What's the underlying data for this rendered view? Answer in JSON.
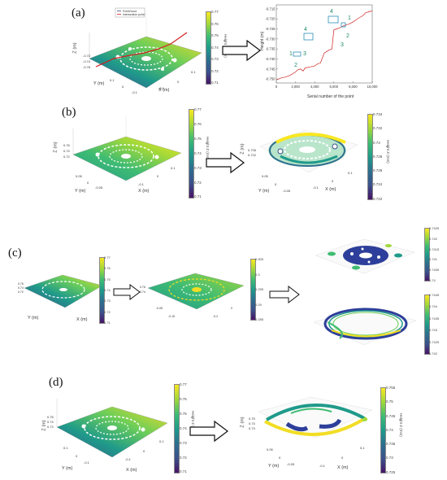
{
  "panels": {
    "a": "(a)",
    "b": "(b)",
    "c": "(c)",
    "d": "(d)"
  },
  "legend": {
    "item1": "PointCloud",
    "item2": "Intersection point"
  },
  "axes": {
    "z": "Z (m)",
    "y": "Y (m)",
    "x": "X (m)",
    "height": "Height Z (mm)"
  },
  "plot_a": {
    "ylabel": "Height (m)",
    "xlabel": "Serial number of the point",
    "yticks": [
      "-0.715",
      "-0.720",
      "-0.725",
      "-0.730",
      "-0.735",
      "-0.740",
      "-0.745",
      "-0.750"
    ],
    "xticks": [
      "0",
      "2,000",
      "4,000",
      "6,000",
      "8,000",
      "10,000"
    ],
    "labels": [
      "1",
      "2",
      "3",
      "4",
      "4",
      "1",
      "2",
      "3"
    ]
  },
  "chart_data": {
    "type": "line",
    "title": "",
    "xlabel": "Serial number of the point",
    "ylabel": "Height (m)",
    "xlim": [
      0,
      10000
    ],
    "ylim": [
      -0.752,
      -0.713
    ],
    "series": [
      {
        "x": [
          0,
          500,
          1000,
          1500,
          2000,
          2200,
          2500,
          2800,
          3000,
          3500,
          4000,
          4300,
          4600,
          5000,
          5200,
          5500,
          5800,
          6000,
          6300,
          6600,
          7000,
          7300,
          7600,
          8000,
          8300,
          8600,
          9000,
          9300,
          9600,
          10000
        ],
        "values": [
          -0.7505,
          -0.7495,
          -0.749,
          -0.748,
          -0.7465,
          -0.7455,
          -0.745,
          -0.746,
          -0.7445,
          -0.744,
          -0.7435,
          -0.7425,
          -0.742,
          -0.737,
          -0.7365,
          -0.7355,
          -0.735,
          -0.7255,
          -0.725,
          -0.7245,
          -0.7235,
          -0.723,
          -0.7225,
          -0.7215,
          -0.7205,
          -0.7195,
          -0.7185,
          -0.717,
          -0.7165,
          -0.716
        ]
      }
    ]
  },
  "cb_a": {
    "ticks": [
      "0.77",
      "0.76",
      "0.75",
      "0.74",
      "0.73",
      "0.72",
      "0.71"
    ]
  },
  "cb_b1": {
    "ticks": [
      "0.77",
      "0.76",
      "0.75",
      "0.74",
      "0.73",
      "0.72",
      "0.71"
    ]
  },
  "cb_b2": {
    "ticks": [
      "0.734",
      "0.732",
      "0.73",
      "0.728",
      "0.726",
      "0.724",
      "0.722"
    ]
  },
  "cb_c1": {
    "ticks": [
      "0.77",
      "0.76",
      "0.75",
      "0.74",
      "0.73",
      "0.72",
      "0.71"
    ]
  },
  "cb_c2": {
    "ticks": [
      "0.305",
      "0.3",
      "0.295",
      "0.29",
      "0.285"
    ]
  },
  "cb_c3": {
    "ticks": [
      "0.7425",
      "0.742",
      "0.7415",
      "0.741",
      "0.7405",
      "0.74"
    ]
  },
  "cb_c4": {
    "ticks": [
      "0.7445",
      "0.744",
      "0.7435",
      "0.743",
      "0.7425",
      "0.742"
    ]
  },
  "cb_d1": {
    "ticks": [
      "0.77",
      "0.76",
      "0.75",
      "0.74",
      "0.73",
      "0.72",
      "0.71"
    ]
  },
  "cb_d2": {
    "ticks": [
      "0.755",
      "0.75",
      "0.745",
      "0.74",
      "0.735",
      "0.73",
      "0.725"
    ]
  }
}
